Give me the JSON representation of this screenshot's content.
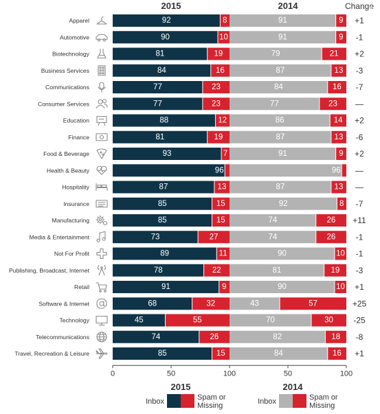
{
  "chart_data": {
    "type": "bar",
    "stacked": true,
    "title": "",
    "panels": [
      {
        "label": "2015",
        "xlim": [
          0,
          100
        ],
        "ticks": [
          "0",
          "50",
          "100"
        ]
      },
      {
        "label": "2014",
        "xlim": [
          0,
          100
        ],
        "ticks": [
          "50",
          "100"
        ]
      }
    ],
    "change_header": "Change",
    "categories": [
      "Apparel",
      "Automotive",
      "Biotechnology",
      "Business Services",
      "Communications",
      "Consumer Services",
      "Education",
      "Finance",
      "Food & Beverage",
      "Health & Beauty",
      "Hospitality",
      "Insurance",
      "Manufacturing",
      "Media & Entertainment",
      "Not For Profit",
      "Publishing, Broadcast, Internet",
      "Retail",
      "Software & Internet",
      "Technology",
      "Telecommunications",
      "Travel, Recreation & Leisure"
    ],
    "icons": [
      "hanger-icon",
      "car-icon",
      "flask-icon",
      "building-icon",
      "microphone-icon",
      "people-icon",
      "classroom-icon",
      "banknote-icon",
      "pizza-icon",
      "heart-icon",
      "bed-icon",
      "document-icon",
      "gears-icon",
      "music-note-icon",
      "plus-sign-icon",
      "broadcast-tower-icon",
      "cart-icon",
      "at-sign-icon",
      "monitor-icon",
      "globe-icon",
      "airplane-icon"
    ],
    "series": [
      {
        "name": "Inbox",
        "panel": "2015",
        "values": [
          92,
          90,
          81,
          84,
          77,
          77,
          88,
          81,
          93,
          96,
          87,
          85,
          85,
          73,
          89,
          78,
          91,
          68,
          45,
          74,
          85
        ]
      },
      {
        "name": "Spam or Missing",
        "panel": "2015",
        "values": [
          8,
          10,
          19,
          16,
          23,
          23,
          12,
          19,
          7,
          4,
          13,
          15,
          15,
          27,
          11,
          22,
          9,
          32,
          55,
          26,
          15
        ]
      },
      {
        "name": "Inbox",
        "panel": "2014",
        "values": [
          91,
          91,
          79,
          87,
          84,
          77,
          86,
          87,
          91,
          96,
          87,
          92,
          74,
          74,
          90,
          81,
          90,
          43,
          70,
          82,
          84
        ]
      },
      {
        "name": "Spam or Missing",
        "panel": "2014",
        "values": [
          9,
          9,
          21,
          13,
          16,
          23,
          14,
          13,
          9,
          4,
          13,
          8,
          26,
          26,
          10,
          19,
          10,
          57,
          30,
          18,
          16
        ]
      }
    ],
    "change": [
      "+1",
      "-1",
      "+2",
      "-3",
      "-7",
      "—",
      "+2",
      "-6",
      "+2",
      "—",
      "—",
      "-7",
      "+11",
      "-1",
      "-1",
      "-3",
      "+1",
      "+25",
      "-25",
      "-8",
      "+1"
    ],
    "legends": [
      {
        "title": "2015",
        "inbox_label": "Inbox",
        "spam_label": "Spam or Missing"
      },
      {
        "title": "2014",
        "inbox_label": "Inbox",
        "spam_label": "Spam or Missing"
      }
    ],
    "colors": {
      "inbox_2015": "#0f3448",
      "inbox_2014": "#b3b3b3",
      "spam": "#d7232f",
      "icon": "#8a8a8a",
      "text": "#333333",
      "axis": "#444444"
    },
    "grid": false
  }
}
